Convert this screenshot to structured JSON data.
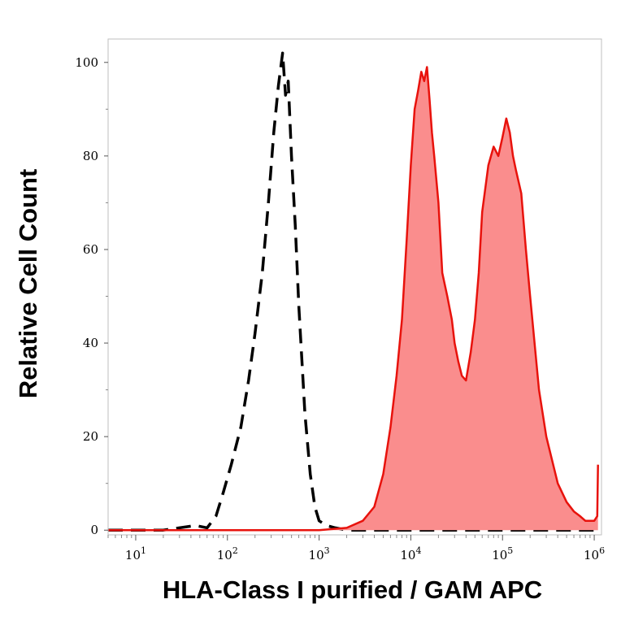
{
  "chart_data": {
    "type": "area",
    "title": "",
    "xlabel": "HLA-Class I purified / GAM APC",
    "ylabel": "Relative Cell Count",
    "x_scale": "log",
    "xlim": [
      5,
      1200000
    ],
    "ylim": [
      -1,
      105
    ],
    "grid": false,
    "x_ticks": [
      {
        "value": 10,
        "base": "10",
        "exp": "1"
      },
      {
        "value": 100,
        "base": "10",
        "exp": "2"
      },
      {
        "value": 1000,
        "base": "10",
        "exp": "3"
      },
      {
        "value": 10000,
        "base": "10",
        "exp": "4"
      },
      {
        "value": 100000,
        "base": "10",
        "exp": "5"
      },
      {
        "value": 1000000,
        "base": "10",
        "exp": "6"
      }
    ],
    "y_ticks": [
      {
        "value": 0,
        "label": "0"
      },
      {
        "value": 20,
        "label": "20"
      },
      {
        "value": 40,
        "label": "40"
      },
      {
        "value": 60,
        "label": "60"
      },
      {
        "value": 80,
        "label": "80"
      },
      {
        "value": 100,
        "label": "100"
      }
    ],
    "series": [
      {
        "style": "dashed",
        "color": "#000000",
        "x": [
          5,
          20,
          30,
          45,
          60,
          75,
          90,
          110,
          140,
          170,
          200,
          240,
          280,
          320,
          360,
          400,
          430,
          460,
          500,
          550,
          600,
          700,
          800,
          900,
          1000,
          1200,
          1500,
          2000,
          3000,
          5000,
          20000,
          100000,
          1000000
        ],
        "y": [
          0,
          0,
          0.5,
          1,
          0.5,
          3,
          8,
          14,
          22,
          32,
          42,
          55,
          70,
          85,
          95,
          102,
          93,
          96,
          80,
          65,
          48,
          25,
          12,
          5,
          2,
          1,
          0.5,
          0,
          0,
          0,
          0,
          0,
          0
        ]
      },
      {
        "style": "filled",
        "color": "#e8120c",
        "fill": "#fa8d8d",
        "x": [
          5,
          1000,
          2000,
          3000,
          4000,
          5000,
          6000,
          7000,
          8000,
          9000,
          10000,
          11000,
          12000,
          13000,
          14000,
          15000,
          16000,
          17000,
          18000,
          20000,
          22000,
          25000,
          28000,
          30000,
          33000,
          36000,
          40000,
          45000,
          50000,
          55000,
          60000,
          70000,
          80000,
          90000,
          100000,
          110000,
          120000,
          130000,
          140000,
          160000,
          180000,
          200000,
          250000,
          300000,
          400000,
          500000,
          600000,
          700000,
          800000,
          900000,
          1000000,
          1080000,
          1100000
        ],
        "y": [
          0,
          0,
          0.5,
          2,
          5,
          12,
          22,
          33,
          45,
          62,
          78,
          90,
          94,
          98,
          96,
          99,
          92,
          85,
          80,
          70,
          55,
          50,
          45,
          40,
          36,
          33,
          32,
          38,
          45,
          55,
          68,
          78,
          82,
          80,
          84,
          88,
          85,
          80,
          77,
          72,
          60,
          50,
          30,
          20,
          10,
          6,
          4,
          3,
          2,
          2,
          2,
          3,
          14
        ]
      }
    ]
  }
}
